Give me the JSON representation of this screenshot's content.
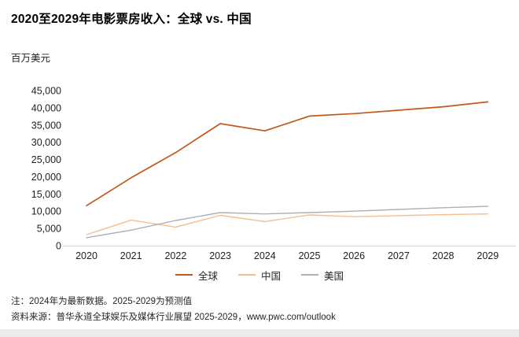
{
  "chart_data": {
    "type": "line",
    "title": "2020至2029年电影票房收入：全球 vs. 中国",
    "ylabel": "百万美元",
    "xlabel": "",
    "categories": [
      "2020",
      "2021",
      "2022",
      "2023",
      "2024",
      "2025",
      "2026",
      "2027",
      "2028",
      "2029"
    ],
    "series": [
      {
        "name": "全球",
        "color": "#c4571a",
        "values": [
          11600,
          19700,
          27000,
          35400,
          33300,
          37600,
          38300,
          39300,
          40300,
          41700
        ]
      },
      {
        "name": "中国",
        "color": "#f5bd8e",
        "values": [
          3200,
          7400,
          5400,
          8800,
          7000,
          8900,
          8400,
          8700,
          9000,
          9200
        ]
      },
      {
        "name": "美国",
        "color": "#aab0ba",
        "values": [
          2300,
          4500,
          7300,
          9600,
          9200,
          9600,
          10000,
          10500,
          11000,
          11400
        ]
      }
    ],
    "ylim": [
      0,
      45000
    ],
    "yticks": [
      "0",
      "5,000",
      "10,000",
      "15,000",
      "20,000",
      "25,000",
      "30,000",
      "35,000",
      "40,000",
      "45,000"
    ],
    "grid": false,
    "legend_position": "bottom-center"
  },
  "notes": {
    "note": "注：2024年为最新数据。2025-2029为预测值",
    "source": "资料来源：普华永道全球娱乐及媒体行业展望 2025-2029，www.pwc.com/outlook"
  },
  "colors": {
    "axis_line": "#d9d9d9",
    "tick_text": "#1f1f1f",
    "note_text": "#262626"
  }
}
